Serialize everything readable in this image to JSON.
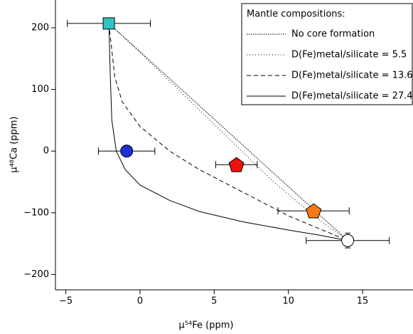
{
  "chart_data": {
    "type": "scatter",
    "xlabel": "μ⁵⁴Fe (ppm)",
    "ylabel": "μ⁴⁸Ca (ppm)",
    "xlim": [
      -5.7,
      18.4
    ],
    "ylim": [
      -225,
      245
    ],
    "xticks": [
      {
        "value": -5,
        "label": "−5"
      },
      0,
      5,
      10,
      15
    ],
    "yticks": [
      {
        "value": -200,
        "label": "−200"
      },
      {
        "value": -100,
        "label": "−100"
      },
      0,
      100,
      200
    ],
    "legend_title": "Mantle compositions:",
    "legend_position": "upper right",
    "curves": [
      {
        "name": "No core formation",
        "dash": "1.5,1.5",
        "color": "#000000",
        "x": [
          -2.1,
          14
        ],
        "y": [
          207,
          -145
        ]
      },
      {
        "name": "D(Fe)metal/silicate = 5.5",
        "dash": "1,3",
        "color": "#000000",
        "x": [
          -2.1,
          0,
          3,
          6,
          9,
          12,
          14
        ],
        "y": [
          207,
          160,
          90,
          20,
          -50,
          -110,
          -145
        ]
      },
      {
        "name": "D(Fe)metal/silicate = 13.66",
        "dash": "6,4",
        "color": "#000000",
        "x": [
          -2.1,
          -1.7,
          -1.2,
          0,
          2,
          4,
          6,
          8,
          10,
          12,
          14
        ],
        "y": [
          207,
          120,
          80,
          40,
          0,
          -30,
          -55,
          -80,
          -105,
          -125,
          -145
        ]
      },
      {
        "name": "D(Fe)metal/silicate = 27.4",
        "dash": "none",
        "color": "#000000",
        "x": [
          -2.1,
          -2.0,
          -1.9,
          -1.6,
          -1,
          0,
          2,
          4,
          7,
          10,
          12,
          14
        ],
        "y": [
          207,
          120,
          50,
          0,
          -30,
          -55,
          -80,
          -98,
          -115,
          -128,
          -136,
          -145
        ]
      }
    ],
    "points": {
      "x": [
        -2.1,
        -0.9,
        6.5,
        11.7,
        14
      ],
      "y": [
        207,
        0,
        -22,
        -97,
        -145
      ],
      "xerr": [
        2.8,
        1.9,
        1.4,
        2.4,
        2.8
      ],
      "yerr": [
        0,
        0,
        0,
        0,
        12
      ],
      "colors": [
        "#2ec4c4",
        "#1f2fd6",
        "#ee1111",
        "#f47a17",
        "#ffffff"
      ],
      "markers": [
        "square",
        "circle",
        "pentagon",
        "pentagon",
        "circle"
      ]
    }
  }
}
